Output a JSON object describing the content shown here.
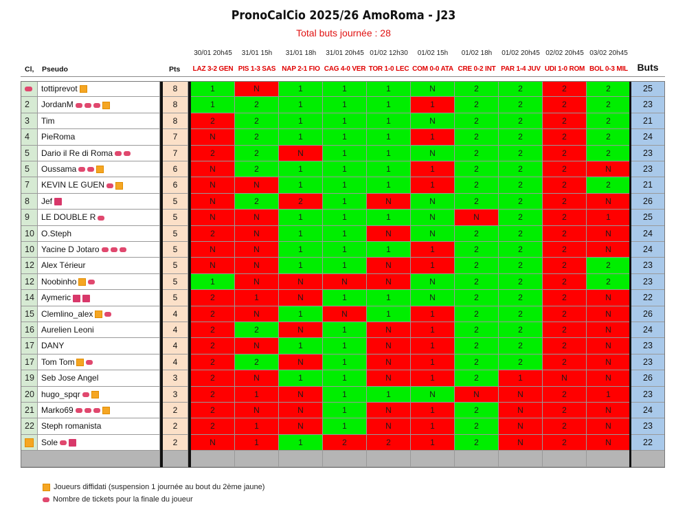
{
  "title": "PronoCalCio 2025/26 AmoRoma - J23",
  "subtitle": "Total buts journée : 28",
  "headers": {
    "rank": "Cl,",
    "pseudo": "Pseudo",
    "pts": "Pts",
    "buts": "Buts"
  },
  "matches": [
    {
      "date": "30/01 20h45",
      "label": "LAZ 3-2 GEN"
    },
    {
      "date": "31/01 15h",
      "label": "PIS 1-3 SAS"
    },
    {
      "date": "31/01 18h",
      "label": "NAP 2-1 FIO"
    },
    {
      "date": "31/01 20h45",
      "label": "CAG 4-0 VER"
    },
    {
      "date": "01/02 12h30",
      "label": "TOR 1-0 LEC"
    },
    {
      "date": "01/02 15h",
      "label": "COM 0-0 ATA"
    },
    {
      "date": "01/02 18h",
      "label": "CRE 0-2 INT"
    },
    {
      "date": "01/02 20h45",
      "label": "PAR 1-4 JUV"
    },
    {
      "date": "02/02 20h45",
      "label": "UDI 1-0 ROM"
    },
    {
      "date": "03/02 20h45",
      "label": "BOL 0-3 MIL"
    }
  ],
  "rows": [
    {
      "rank": "",
      "rank_icon": "ticket",
      "pseudo": "tottiprevot",
      "badges": [
        "orange"
      ],
      "pts": "8",
      "picks": [
        "1",
        "N",
        "1",
        "1",
        "1",
        "N",
        "2",
        "2",
        "2",
        "2"
      ],
      "ok": [
        1,
        0,
        1,
        1,
        1,
        1,
        1,
        1,
        0,
        1
      ],
      "buts": "25"
    },
    {
      "rank": "2",
      "pseudo": "JordanM",
      "badges": [
        "ticket",
        "ticket",
        "ticket",
        "orange"
      ],
      "pts": "8",
      "picks": [
        "1",
        "2",
        "1",
        "1",
        "1",
        "1",
        "2",
        "2",
        "2",
        "2"
      ],
      "ok": [
        1,
        1,
        1,
        1,
        1,
        0,
        1,
        1,
        0,
        1
      ],
      "buts": "23"
    },
    {
      "rank": "3",
      "pseudo": "Tim",
      "badges": [],
      "pts": "8",
      "picks": [
        "2",
        "2",
        "1",
        "1",
        "1",
        "N",
        "2",
        "2",
        "2",
        "2"
      ],
      "ok": [
        0,
        1,
        1,
        1,
        1,
        1,
        1,
        1,
        0,
        1
      ],
      "buts": "21"
    },
    {
      "rank": "4",
      "pseudo": "PieRoma",
      "badges": [],
      "pts": "7",
      "picks": [
        "N",
        "2",
        "1",
        "1",
        "1",
        "1",
        "2",
        "2",
        "2",
        "2"
      ],
      "ok": [
        0,
        1,
        1,
        1,
        1,
        0,
        1,
        1,
        0,
        1
      ],
      "buts": "24"
    },
    {
      "rank": "5",
      "pseudo": "Dario il Re di Roma",
      "badges": [
        "ticket",
        "ticket"
      ],
      "pts": "7",
      "picks": [
        "2",
        "2",
        "N",
        "1",
        "1",
        "N",
        "2",
        "2",
        "2",
        "2"
      ],
      "ok": [
        0,
        1,
        0,
        1,
        1,
        1,
        1,
        1,
        0,
        1
      ],
      "buts": "23"
    },
    {
      "rank": "5",
      "pseudo": "Oussama",
      "badges": [
        "ticket",
        "ticket",
        "orange"
      ],
      "pts": "6",
      "picks": [
        "N",
        "2",
        "1",
        "1",
        "1",
        "1",
        "2",
        "2",
        "2",
        "N"
      ],
      "ok": [
        0,
        1,
        1,
        1,
        1,
        0,
        1,
        1,
        0,
        0
      ],
      "buts": "23"
    },
    {
      "rank": "7",
      "pseudo": "KEVIN LE GUEN",
      "badges": [
        "ticket",
        "orange"
      ],
      "pts": "6",
      "picks": [
        "N",
        "N",
        "1",
        "1",
        "1",
        "1",
        "2",
        "2",
        "2",
        "2"
      ],
      "ok": [
        0,
        0,
        1,
        1,
        1,
        0,
        1,
        1,
        0,
        1
      ],
      "buts": "21"
    },
    {
      "rank": "8",
      "pseudo": "Jef",
      "badges": [
        "red"
      ],
      "pts": "5",
      "picks": [
        "N",
        "2",
        "2",
        "1",
        "N",
        "N",
        "2",
        "2",
        "2",
        "N"
      ],
      "ok": [
        0,
        1,
        0,
        1,
        0,
        1,
        1,
        1,
        0,
        0
      ],
      "buts": "26"
    },
    {
      "rank": "9",
      "pseudo": "LE DOUBLE R",
      "badges": [
        "ticket"
      ],
      "pts": "5",
      "picks": [
        "N",
        "N",
        "1",
        "1",
        "1",
        "N",
        "N",
        "2",
        "2",
        "1"
      ],
      "ok": [
        0,
        0,
        1,
        1,
        1,
        1,
        0,
        1,
        0,
        0
      ],
      "buts": "25"
    },
    {
      "rank": "10",
      "pseudo": "O.Steph",
      "badges": [],
      "pts": "5",
      "picks": [
        "2",
        "N",
        "1",
        "1",
        "N",
        "N",
        "2",
        "2",
        "2",
        "N"
      ],
      "ok": [
        0,
        0,
        1,
        1,
        0,
        1,
        1,
        1,
        0,
        0
      ],
      "buts": "24"
    },
    {
      "rank": "10",
      "pseudo": "Yacine D Jotaro",
      "badges": [
        "ticket",
        "ticket",
        "ticket"
      ],
      "pts": "5",
      "picks": [
        "N",
        "N",
        "1",
        "1",
        "1",
        "1",
        "2",
        "2",
        "2",
        "N"
      ],
      "ok": [
        0,
        0,
        1,
        1,
        1,
        0,
        1,
        1,
        0,
        0
      ],
      "buts": "24"
    },
    {
      "rank": "12",
      "pseudo": "Alex Térieur",
      "badges": [],
      "pts": "5",
      "picks": [
        "N",
        "N",
        "1",
        "1",
        "N",
        "1",
        "2",
        "2",
        "2",
        "2"
      ],
      "ok": [
        0,
        0,
        1,
        1,
        0,
        0,
        1,
        1,
        0,
        1
      ],
      "buts": "23"
    },
    {
      "rank": "12",
      "pseudo": "Noobinho",
      "badges": [
        "orange",
        "ticket"
      ],
      "pts": "5",
      "picks": [
        "1",
        "N",
        "N",
        "N",
        "N",
        "N",
        "2",
        "2",
        "2",
        "2"
      ],
      "ok": [
        1,
        0,
        0,
        0,
        0,
        1,
        1,
        1,
        0,
        1
      ],
      "buts": "23"
    },
    {
      "rank": "14",
      "pseudo": "Aymeric",
      "badges": [
        "red",
        "red"
      ],
      "pts": "5",
      "picks": [
        "2",
        "1",
        "N",
        "1",
        "1",
        "N",
        "2",
        "2",
        "2",
        "N"
      ],
      "ok": [
        0,
        0,
        0,
        1,
        1,
        1,
        1,
        1,
        0,
        0
      ],
      "buts": "22"
    },
    {
      "rank": "15",
      "pseudo": "Clemlino_alex",
      "badges": [
        "orange",
        "ticket"
      ],
      "pts": "4",
      "picks": [
        "2",
        "N",
        "1",
        "N",
        "1",
        "1",
        "2",
        "2",
        "2",
        "N"
      ],
      "ok": [
        0,
        0,
        1,
        0,
        1,
        0,
        1,
        1,
        0,
        0
      ],
      "buts": "26"
    },
    {
      "rank": "16",
      "pseudo": "Aurelien Leoni",
      "badges": [],
      "pts": "4",
      "picks": [
        "2",
        "2",
        "N",
        "1",
        "N",
        "1",
        "2",
        "2",
        "2",
        "N"
      ],
      "ok": [
        0,
        1,
        0,
        1,
        0,
        0,
        1,
        1,
        0,
        0
      ],
      "buts": "24"
    },
    {
      "rank": "17",
      "pseudo": "DANY",
      "badges": [],
      "pts": "4",
      "picks": [
        "2",
        "N",
        "1",
        "1",
        "N",
        "1",
        "2",
        "2",
        "2",
        "N"
      ],
      "ok": [
        0,
        0,
        1,
        1,
        0,
        0,
        1,
        1,
        0,
        0
      ],
      "buts": "23"
    },
    {
      "rank": "17",
      "pseudo": "Tom Tom",
      "badges": [
        "orange",
        "ticket"
      ],
      "pts": "4",
      "picks": [
        "2",
        "2",
        "N",
        "1",
        "N",
        "1",
        "2",
        "2",
        "2",
        "N"
      ],
      "ok": [
        0,
        1,
        0,
        1,
        0,
        0,
        1,
        1,
        0,
        0
      ],
      "buts": "23"
    },
    {
      "rank": "19",
      "pseudo": "Seb Jose Angel",
      "badges": [],
      "pts": "3",
      "picks": [
        "2",
        "N",
        "1",
        "1",
        "N",
        "1",
        "2",
        "1",
        "N",
        "N"
      ],
      "ok": [
        0,
        0,
        1,
        1,
        0,
        0,
        1,
        0,
        0,
        0
      ],
      "buts": "26"
    },
    {
      "rank": "20",
      "pseudo": "hugo_spqr",
      "badges": [
        "ticket",
        "orange"
      ],
      "pts": "3",
      "picks": [
        "2",
        "1",
        "N",
        "1",
        "1",
        "N",
        "N",
        "N",
        "2",
        "1"
      ],
      "ok": [
        0,
        0,
        0,
        1,
        1,
        1,
        0,
        0,
        0,
        0
      ],
      "buts": "23"
    },
    {
      "rank": "21",
      "pseudo": "Marko69",
      "badges": [
        "ticket",
        "ticket",
        "ticket",
        "orange"
      ],
      "pts": "2",
      "picks": [
        "2",
        "N",
        "N",
        "1",
        "N",
        "1",
        "2",
        "N",
        "2",
        "N"
      ],
      "ok": [
        0,
        0,
        0,
        1,
        0,
        0,
        1,
        0,
        0,
        0
      ],
      "buts": "24"
    },
    {
      "rank": "22",
      "pseudo": "Steph romanista",
      "badges": [],
      "pts": "2",
      "picks": [
        "2",
        "1",
        "N",
        "1",
        "N",
        "1",
        "2",
        "N",
        "2",
        "N"
      ],
      "ok": [
        0,
        0,
        0,
        1,
        0,
        0,
        1,
        0,
        0,
        0
      ],
      "buts": "23"
    },
    {
      "rank": "",
      "rank_icon": "orange",
      "pseudo": "Sole",
      "badges": [
        "ticket",
        "red"
      ],
      "pts": "2",
      "picks": [
        "N",
        "1",
        "1",
        "2",
        "2",
        "1",
        "2",
        "N",
        "2",
        "N"
      ],
      "ok": [
        0,
        0,
        1,
        0,
        0,
        0,
        1,
        0,
        0,
        0
      ],
      "buts": "22"
    }
  ],
  "legend": [
    {
      "icon": "orange-square",
      "text": "Joueurs diffidati (suspension 1 journée au bout du 2ème jaune)"
    },
    {
      "icon": "ticket",
      "text": "Nombre de tickets pour la finale du joueur"
    }
  ],
  "colors": {
    "correct": "#00ee00",
    "wrong": "#ff0000",
    "rank_bg": "#d6ead3",
    "pts_bg": "#fbe0c8",
    "buts_bg": "#a9c9ea",
    "title_red": "#e01010"
  }
}
